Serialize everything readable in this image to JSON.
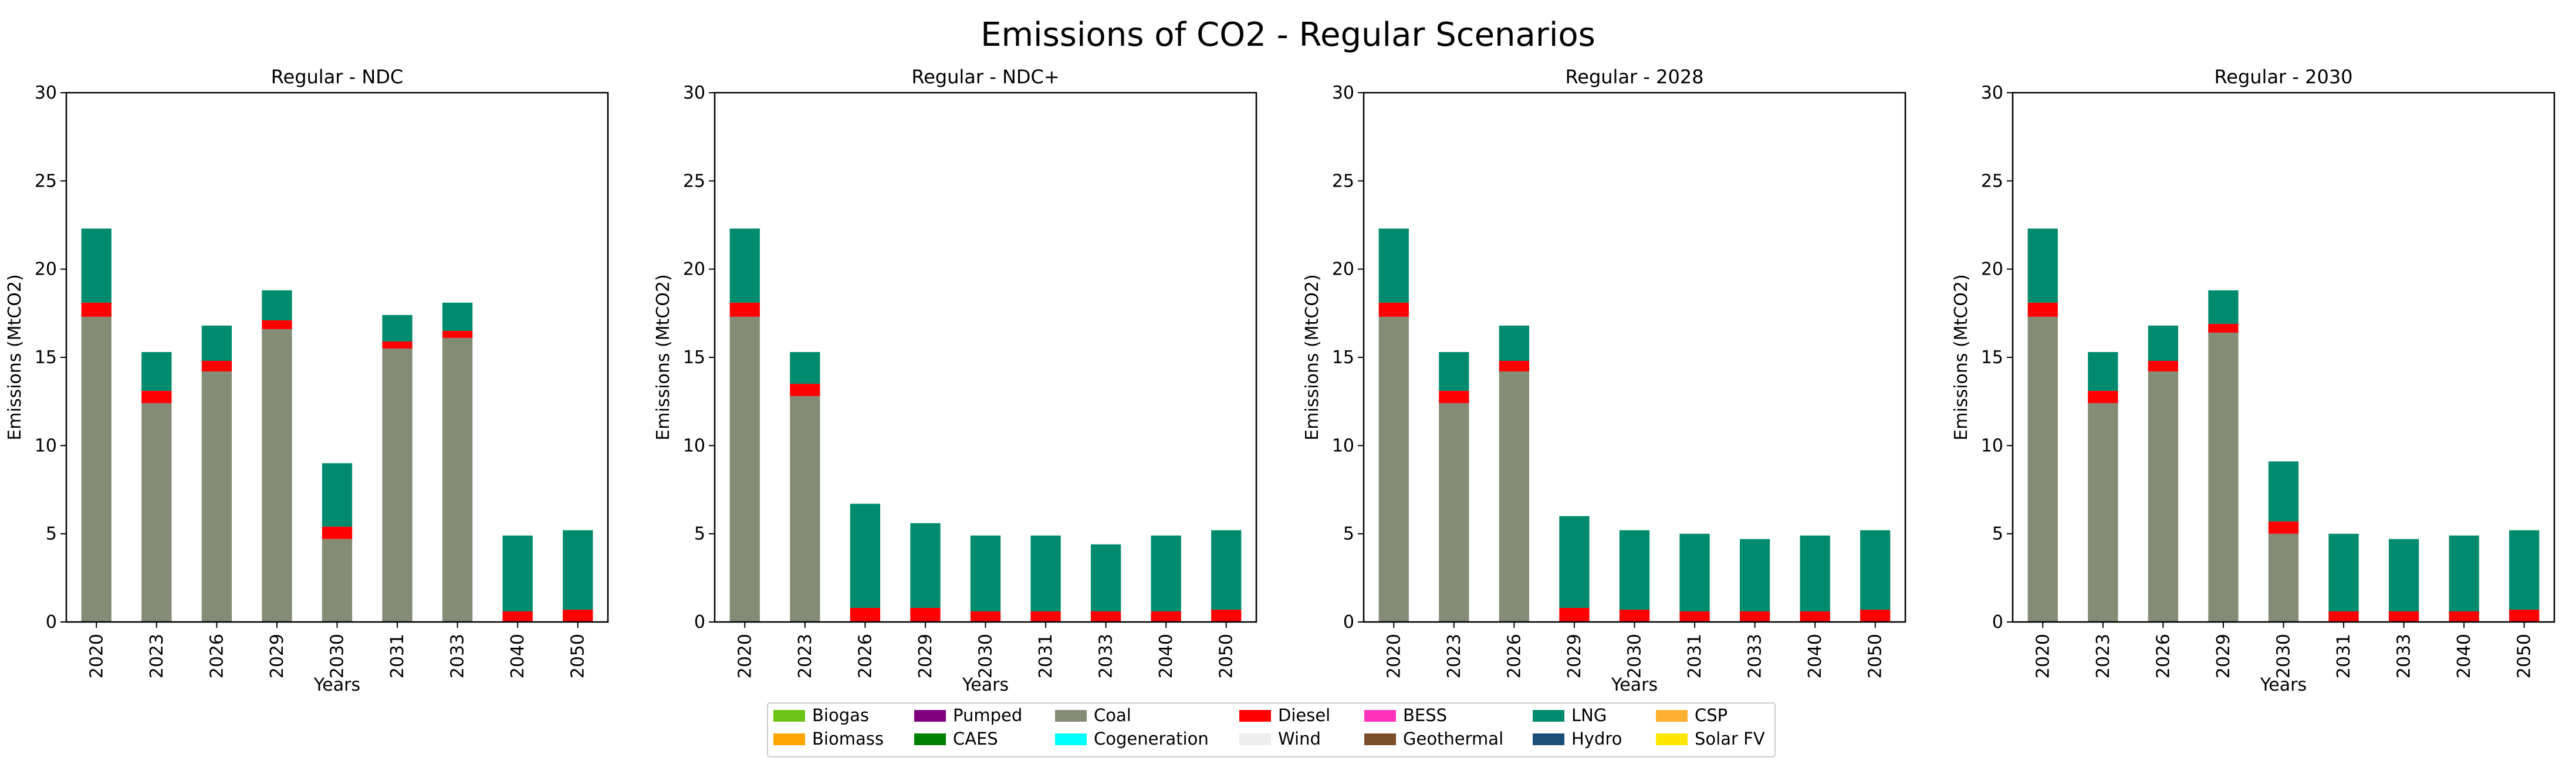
{
  "figure_title": "Emissions of CO2 - Regular Scenarios",
  "colors": {
    "Biogas": "#6cc417",
    "Biomass": "#ffa500",
    "Pumped": "#800080",
    "CAES": "#008000",
    "Coal": "#848c76",
    "Cogeneration": "#00ffff",
    "Diesel": "#ff0000",
    "Wind": "#eeeeee",
    "BESS": "#ff33bb",
    "Geothermal": "#7b4f2a",
    "LNG": "#008b6e",
    "Hydro": "#1a4f7a",
    "CSP": "#ffb030",
    "Solar FV": "#ffe600"
  },
  "legend": [
    [
      "Biogas",
      "Biomass"
    ],
    [
      "Pumped",
      "CAES"
    ],
    [
      "Coal",
      "Cogeneration"
    ],
    [
      "Diesel",
      "Wind"
    ],
    [
      "BESS",
      "Geothermal"
    ],
    [
      "LNG",
      "Hydro"
    ],
    [
      "CSP",
      "Solar FV"
    ]
  ],
  "chart_data": [
    {
      "type": "bar",
      "stacked": true,
      "title": "Regular - NDC",
      "xlabel": "Years",
      "ylabel": "Emissions (MtCO2)",
      "ylim": [
        0,
        30
      ],
      "yticks": [
        0,
        5,
        10,
        15,
        20,
        25,
        30
      ],
      "categories": [
        "2020",
        "2023",
        "2026",
        "2029",
        "2030",
        "2031",
        "2033",
        "2040",
        "2050"
      ],
      "series": [
        {
          "name": "Coal",
          "values": [
            17.3,
            12.4,
            14.2,
            16.6,
            4.7,
            15.5,
            16.1,
            0.0,
            0.0
          ]
        },
        {
          "name": "Diesel",
          "values": [
            0.8,
            0.7,
            0.6,
            0.5,
            0.7,
            0.4,
            0.4,
            0.6,
            0.7
          ]
        },
        {
          "name": "LNG",
          "values": [
            4.2,
            2.2,
            2.0,
            1.7,
            3.6,
            1.5,
            1.6,
            4.3,
            4.5
          ]
        }
      ]
    },
    {
      "type": "bar",
      "stacked": true,
      "title": "Regular - NDC+",
      "xlabel": "Years",
      "ylabel": "Emissions (MtCO2)",
      "ylim": [
        0,
        30
      ],
      "yticks": [
        0,
        5,
        10,
        15,
        20,
        25,
        30
      ],
      "categories": [
        "2020",
        "2023",
        "2026",
        "2029",
        "2030",
        "2031",
        "2033",
        "2040",
        "2050"
      ],
      "series": [
        {
          "name": "Coal",
          "values": [
            17.3,
            12.8,
            0.0,
            0.0,
            0.0,
            0.0,
            0.0,
            0.0,
            0.0
          ]
        },
        {
          "name": "Diesel",
          "values": [
            0.8,
            0.7,
            0.8,
            0.8,
            0.6,
            0.6,
            0.6,
            0.6,
            0.7
          ]
        },
        {
          "name": "LNG",
          "values": [
            4.2,
            1.8,
            5.9,
            4.8,
            4.3,
            4.3,
            3.8,
            4.3,
            4.5
          ]
        }
      ]
    },
    {
      "type": "bar",
      "stacked": true,
      "title": "Regular - 2028",
      "xlabel": "Years",
      "ylabel": "Emissions (MtCO2)",
      "ylim": [
        0,
        30
      ],
      "yticks": [
        0,
        5,
        10,
        15,
        20,
        25,
        30
      ],
      "categories": [
        "2020",
        "2023",
        "2026",
        "2029",
        "2030",
        "2031",
        "2033",
        "2040",
        "2050"
      ],
      "series": [
        {
          "name": "Coal",
          "values": [
            17.3,
            12.4,
            14.2,
            0.0,
            0.0,
            0.0,
            0.0,
            0.0,
            0.0
          ]
        },
        {
          "name": "Diesel",
          "values": [
            0.8,
            0.7,
            0.6,
            0.8,
            0.7,
            0.6,
            0.6,
            0.6,
            0.7
          ]
        },
        {
          "name": "LNG",
          "values": [
            4.2,
            2.2,
            2.0,
            5.2,
            4.5,
            4.4,
            4.1,
            4.3,
            4.5
          ]
        }
      ]
    },
    {
      "type": "bar",
      "stacked": true,
      "title": "Regular - 2030",
      "xlabel": "Years",
      "ylabel": "Emissions (MtCO2)",
      "ylim": [
        0,
        30
      ],
      "yticks": [
        0,
        5,
        10,
        15,
        20,
        25,
        30
      ],
      "categories": [
        "2020",
        "2023",
        "2026",
        "2029",
        "2030",
        "2031",
        "2033",
        "2040",
        "2050"
      ],
      "series": [
        {
          "name": "Coal",
          "values": [
            17.3,
            12.4,
            14.2,
            16.4,
            5.0,
            0.0,
            0.0,
            0.0,
            0.0
          ]
        },
        {
          "name": "Diesel",
          "values": [
            0.8,
            0.7,
            0.6,
            0.5,
            0.7,
            0.6,
            0.6,
            0.6,
            0.7
          ]
        },
        {
          "name": "LNG",
          "values": [
            4.2,
            2.2,
            2.0,
            1.9,
            3.4,
            4.4,
            4.1,
            4.3,
            4.5
          ]
        }
      ]
    }
  ]
}
